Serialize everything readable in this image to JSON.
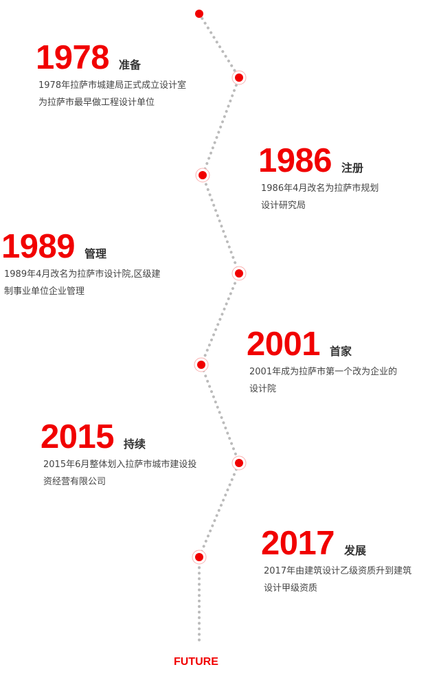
{
  "accent_color": "#f10000",
  "timeline": [
    {
      "year": "1978",
      "label": "准备",
      "desc": "1978年拉萨市城建局正式成立设计室\n为拉萨市最早做工程设计单位"
    },
    {
      "year": "1986",
      "label": "注册",
      "desc": "1986年4月改名为拉萨市规划\n设计研究局"
    },
    {
      "year": "1989",
      "label": "管理",
      "desc": "1989年4月改名为拉萨市设计院,区级建\n制事业单位企业管理"
    },
    {
      "year": "2001",
      "label": "首家",
      "desc": "2001年成为拉萨市第一个改为企业的\n设计院"
    },
    {
      "year": "2015",
      "label": "持续",
      "desc": "2015年6月整体划入拉萨市城市建设投\n资经营有限公司"
    },
    {
      "year": "2017",
      "label": "发展",
      "desc": "2017年由建筑设计乙级资质升到建筑\n设计甲级资质"
    }
  ],
  "footer": {
    "future_label": "FUTURE"
  }
}
